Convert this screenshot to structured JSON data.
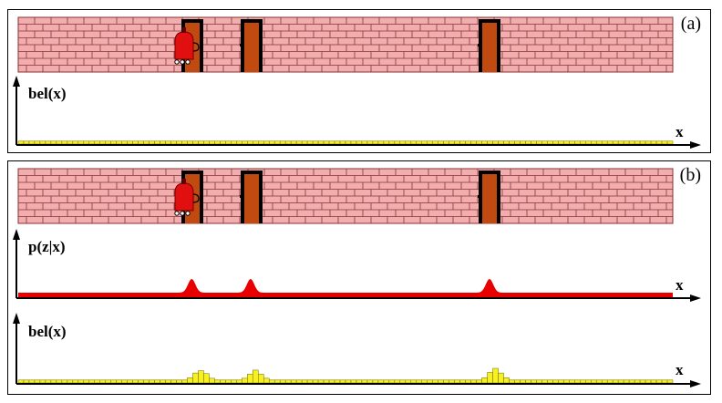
{
  "panels": [
    {
      "label": "(a)",
      "plots": [
        {
          "ylabel": "bel(x)",
          "xlabel": "x",
          "kind": "belief",
          "values": [
            1,
            1,
            1,
            1,
            1,
            1,
            1,
            1,
            1,
            1,
            1,
            1,
            1,
            1,
            1,
            1,
            1,
            1,
            1,
            1,
            1,
            1,
            1,
            1,
            1,
            1,
            1,
            1,
            1,
            1,
            1,
            1,
            1,
            1,
            1,
            1,
            1,
            1,
            1,
            1,
            1,
            1,
            1,
            1,
            1,
            1,
            1,
            1,
            1,
            1,
            1,
            1,
            1,
            1,
            1,
            1,
            1,
            1,
            1,
            1,
            1,
            1,
            1,
            1,
            1,
            1,
            1,
            1,
            1,
            1,
            1,
            1,
            1,
            1,
            1,
            1,
            1,
            1,
            1,
            1,
            1,
            1,
            1,
            1,
            1,
            1,
            1,
            1,
            1,
            1,
            1,
            1,
            1,
            1,
            1,
            1,
            1,
            1,
            1,
            1,
            1,
            1,
            1,
            1,
            1,
            1,
            1,
            1,
            1,
            1,
            1,
            1,
            1,
            1,
            1,
            1,
            1,
            1,
            1,
            1
          ]
        }
      ]
    },
    {
      "label": "(b)",
      "plots": [
        {
          "ylabel": "p(z|x)",
          "xlabel": "x",
          "kind": "likelihood",
          "baseline": 1,
          "peaks": [
            {
              "x": 0.265,
              "height": 4
            },
            {
              "x": 0.355,
              "height": 4
            },
            {
              "x": 0.72,
              "height": 4
            }
          ]
        },
        {
          "ylabel": "bel(x)",
          "xlabel": "x",
          "kind": "belief",
          "values": [
            1,
            1,
            1,
            1,
            1,
            1,
            1,
            1,
            1,
            1,
            1,
            1,
            1,
            1,
            1,
            1,
            1,
            1,
            1,
            1,
            1,
            1,
            1,
            1,
            1,
            1,
            1,
            1,
            1,
            1,
            1,
            1,
            1,
            1,
            1,
            1,
            1,
            1,
            1,
            1,
            1,
            1,
            1,
            1,
            1,
            1,
            1,
            1,
            1,
            1,
            1,
            1,
            1,
            1,
            1,
            1,
            1,
            1,
            1,
            1,
            1,
            1,
            1,
            1,
            1,
            1,
            1,
            1,
            1,
            1,
            1,
            1,
            1,
            1,
            1,
            1,
            1,
            1,
            1,
            1,
            1,
            1,
            1,
            1,
            1,
            1,
            1,
            1,
            1,
            1,
            1,
            1,
            1,
            1,
            1,
            1,
            1,
            1,
            1,
            1,
            1,
            1,
            1,
            1,
            1,
            1,
            1,
            1,
            1,
            1,
            1,
            1,
            1,
            1,
            1,
            1,
            1,
            1,
            1,
            1
          ],
          "bumps": [
            {
              "index": 31,
              "values": [
                1.8,
                3.4,
                4.2,
                3.2,
                1.6
              ]
            },
            {
              "index": 41,
              "values": [
                1.6,
                3.0,
                4.4,
                3.0,
                1.6
              ]
            },
            {
              "index": 85,
              "values": [
                1.8,
                3.6,
                5.0,
                3.4,
                1.8
              ]
            }
          ]
        }
      ]
    }
  ],
  "colors": {
    "brick": "#f2aeae",
    "mortar": "#8a3030",
    "door": "#c04a10",
    "robot": "#e01010",
    "belief": "#f8f020",
    "likelihood": "#e80000"
  }
}
